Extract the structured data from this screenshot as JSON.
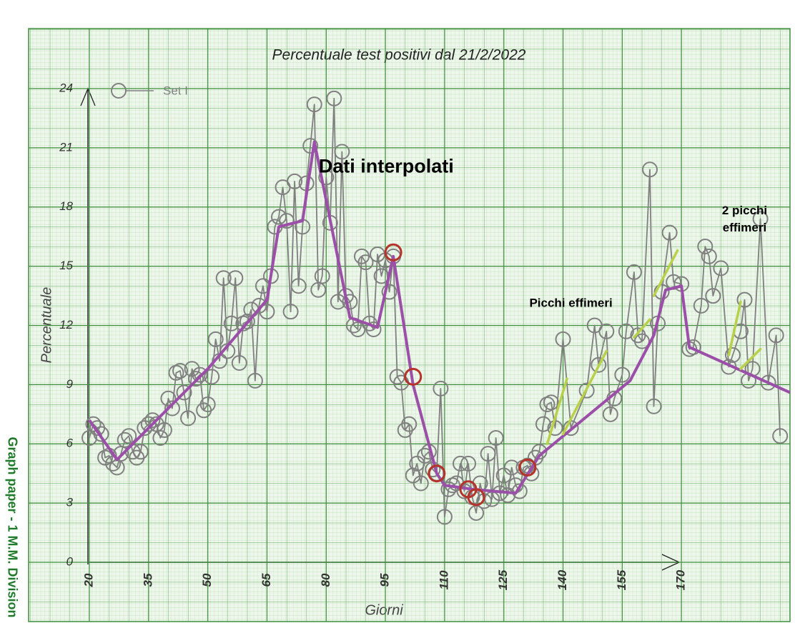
{
  "chart_data": {
    "type": "line",
    "title": "Percentuale test positivi dal 21/2/2022",
    "xlabel": "Giorni",
    "ylabel": "Percentuale",
    "side_note": "Graph paper - 1 M.M. Division",
    "annotations": [
      {
        "text": [
          "Dati interpolati"
        ],
        "x": 31,
        "y": 20
      },
      {
        "text": [
          "Picchi effimeri"
        ],
        "x": 142,
        "y": 13.1
      },
      {
        "text": [
          "2 picchi",
          "effimeri"
        ],
        "x": 186,
        "y": 17.8
      }
    ],
    "xlim": [
      20,
      197.5
    ],
    "ylim": [
      0,
      24
    ],
    "xticks": [
      20,
      35,
      50,
      65,
      80,
      95,
      110,
      125,
      140,
      155,
      170
    ],
    "yticks": [
      0,
      3,
      6,
      9,
      12,
      15,
      18,
      21,
      24
    ],
    "grid": true,
    "series": [
      {
        "name": "Set I",
        "color": "#808080",
        "marker": "circle",
        "x": [
          20,
          21,
          22,
          23,
          24,
          25,
          26,
          27,
          28,
          29,
          30,
          31,
          32,
          33,
          34,
          35,
          36,
          37,
          38,
          39,
          40,
          41,
          42,
          43,
          44,
          45,
          46,
          47,
          48,
          49,
          50,
          51,
          52,
          53,
          54,
          55,
          56,
          57,
          58,
          59,
          60,
          61,
          62,
          63,
          64,
          65,
          66,
          67,
          68,
          69,
          70,
          71,
          72,
          73,
          74,
          75,
          76,
          77,
          78,
          79,
          80,
          81,
          82,
          83,
          84,
          85,
          86,
          87,
          88,
          89,
          90,
          91,
          92,
          93,
          94,
          95,
          96,
          97,
          98,
          99,
          100,
          101,
          102,
          103,
          104,
          105,
          106,
          107,
          108,
          109,
          110,
          111,
          112,
          113,
          114,
          115,
          116,
          117,
          118,
          119,
          120,
          121,
          122,
          123,
          124,
          125,
          126,
          127,
          128,
          129,
          130,
          131,
          132,
          133,
          134,
          135,
          136,
          137,
          138,
          140,
          142,
          146,
          148,
          149,
          151,
          152,
          153,
          155,
          156,
          158,
          159,
          160,
          162,
          163,
          164,
          165,
          167,
          168,
          170,
          172,
          173,
          175,
          176,
          177,
          178,
          180,
          182,
          183,
          185,
          186,
          187,
          188,
          190,
          192,
          194,
          195
        ],
        "values": [
          6.3,
          7.0,
          6.8,
          6.5,
          5.3,
          5.4,
          5.0,
          4.8,
          5.5,
          6.2,
          6.4,
          5.6,
          5.3,
          5.6,
          6.8,
          7.0,
          7.2,
          7.0,
          6.3,
          6.7,
          8.3,
          7.8,
          9.6,
          9.7,
          8.6,
          7.3,
          9.8,
          9.3,
          9.5,
          7.7,
          8.0,
          9.4,
          11.3,
          10.2,
          14.4,
          10.7,
          12.1,
          14.4,
          10.1,
          12.1,
          12.2,
          12.8,
          9.2,
          13.0,
          14.0,
          12.7,
          14.5,
          17.0,
          17.5,
          19.0,
          17.3,
          12.7,
          19.3,
          14.0,
          17.0,
          19.2,
          21.1,
          23.2,
          13.8,
          14.5,
          19.5,
          17.2,
          23.5,
          13.2,
          20.8,
          13.5,
          13.2,
          12.0,
          11.8,
          15.5,
          15.2,
          12.1,
          11.8,
          15.6,
          14.5,
          15.3,
          13.7,
          15.5,
          9.4,
          9.1,
          6.7,
          7.0,
          4.4,
          5.0,
          4.0,
          5.4,
          5.6,
          4.7,
          4.5,
          8.8,
          2.3,
          3.7,
          3.9,
          4.0,
          5.0,
          3.6,
          5.0,
          3.3,
          2.5,
          4.0,
          3.1,
          5.5,
          3.2,
          6.3,
          3.5,
          4.4,
          3.4,
          4.8,
          3.9,
          3.6,
          4.8,
          4.9,
          4.5,
          5.3,
          5.6,
          7.0,
          8.0,
          8.1,
          6.8,
          11.3,
          6.8,
          8.7,
          12.0,
          10.0,
          11.7,
          7.5,
          8.3,
          9.5,
          11.7,
          14.7,
          11.5,
          11.2,
          19.9,
          7.9,
          12.1,
          13.7,
          16.7,
          14.2,
          14.1,
          10.8,
          10.9,
          13.0,
          16.0,
          15.5,
          13.5,
          14.9,
          9.9,
          10.5,
          11.7,
          13.3,
          9.2,
          9.8,
          17.4,
          9.1,
          11.5,
          6.4
        ]
      },
      {
        "color": "#9b4fa8",
        "marker": "none",
        "x": [
          20,
          27,
          50,
          65,
          68,
          74,
          77,
          86,
          93,
          97,
          102,
          108,
          110,
          117,
          128,
          134,
          157,
          163,
          166,
          170,
          172,
          197.5
        ],
        "values": [
          7.2,
          5.2,
          9.8,
          13.3,
          17.0,
          17.3,
          21.3,
          12.4,
          11.9,
          15.5,
          9.0,
          4.5,
          3.9,
          3.7,
          3.5,
          5.4,
          9.2,
          11.5,
          13.8,
          14.0,
          10.9,
          8.6
        ]
      },
      {
        "color": "#b5332a",
        "marker": "ring",
        "x": [
          97,
          102,
          108,
          116,
          118,
          131
        ],
        "values": [
          15.7,
          9.4,
          4.5,
          3.7,
          3.3,
          4.8
        ]
      }
    ],
    "trend_segments": {
      "color": "#b8d04a",
      "segments": [
        {
          "x": [
            136,
            141
          ],
          "values": [
            6.0,
            9.3
          ]
        },
        {
          "x": [
            140,
            151
          ],
          "values": [
            6.5,
            10.7
          ]
        },
        {
          "x": [
            158,
            162
          ],
          "values": [
            11.4,
            12.3
          ]
        },
        {
          "x": [
            163,
            169
          ],
          "values": [
            13.5,
            15.8
          ]
        },
        {
          "x": [
            182,
            185
          ],
          "values": [
            10.5,
            13.2
          ]
        },
        {
          "x": [
            185,
            190
          ],
          "values": [
            9.8,
            10.8
          ]
        }
      ]
    }
  }
}
